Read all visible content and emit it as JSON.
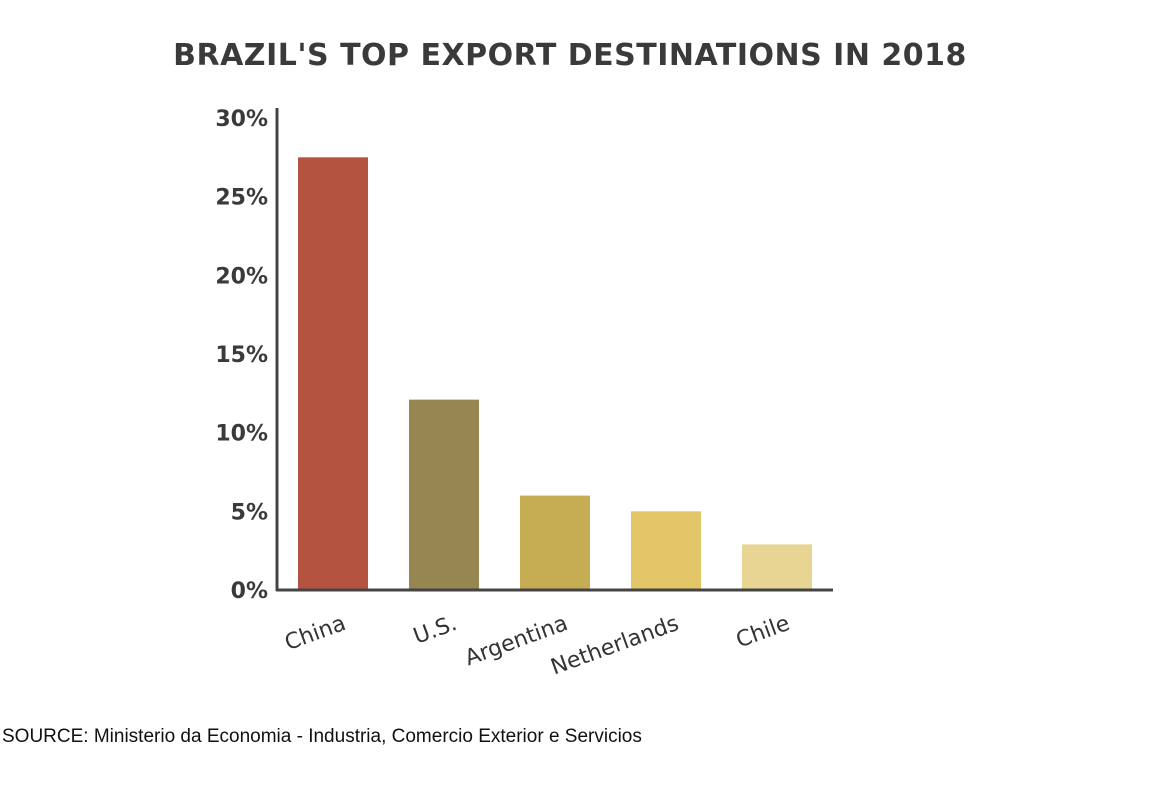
{
  "chart_data": {
    "type": "bar",
    "title": "BRAZIL'S TOP EXPORT DESTINATIONS IN 2018",
    "xlabel": "",
    "ylabel": "",
    "categories": [
      "China",
      "U.S.",
      "Argentina",
      "Netherlands",
      "Chile"
    ],
    "values": [
      27.5,
      12.1,
      6.0,
      5.0,
      2.9
    ],
    "colors": [
      "#b45340",
      "#968651",
      "#c6ad54",
      "#e1c566",
      "#e8d594"
    ],
    "yticks": [
      0,
      5,
      10,
      15,
      20,
      25,
      30
    ],
    "ytick_labels": [
      "0%",
      "5%",
      "10%",
      "15%",
      "20%",
      "25%",
      "30%"
    ],
    "ylim": [
      0,
      30
    ],
    "grid": false,
    "legend": null
  },
  "source": "SOURCE: Ministerio da Economia - Industria, Comercio Exterior e Servicios"
}
